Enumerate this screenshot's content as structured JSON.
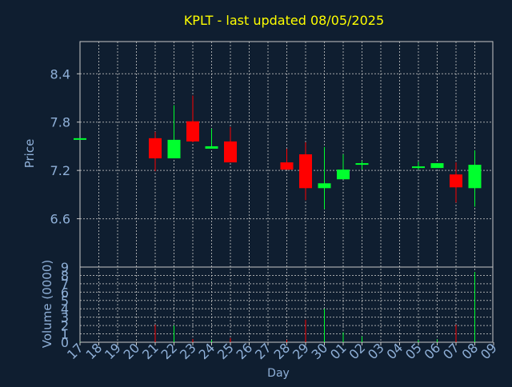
{
  "chart_data": {
    "type": "candlestick",
    "title": "KPLT - last updated 08/05/2025",
    "xlabel": "Day",
    "ylabel_price": "Price",
    "ylabel_volume": "Volume (0000)",
    "x_ticks": [
      "17",
      "18",
      "19",
      "20",
      "21",
      "22",
      "23",
      "24",
      "25",
      "26",
      "27",
      "28",
      "29",
      "30",
      "01",
      "02",
      "03",
      "04",
      "05",
      "06",
      "07",
      "08",
      "09"
    ],
    "price_ylim": [
      6.0,
      8.8
    ],
    "price_yticks": [
      "6.6",
      "7.2",
      "7.8",
      "8.4"
    ],
    "volume_ylim": [
      0,
      9
    ],
    "volume_yticks": [
      "0",
      "1",
      "2",
      "3",
      "4",
      "5",
      "6",
      "7",
      "8",
      "9"
    ],
    "grid": true,
    "candles": [
      {
        "day": "17",
        "open": 7.6,
        "high": 7.6,
        "low": 7.6,
        "close": 7.6,
        "volume": 0.05
      },
      {
        "day": "21",
        "open": 7.6,
        "high": 7.68,
        "low": 7.19,
        "close": 7.35,
        "volume": 2.1
      },
      {
        "day": "22",
        "open": 7.35,
        "high": 8.01,
        "low": 7.35,
        "close": 7.58,
        "volume": 2.0
      },
      {
        "day": "23",
        "open": 7.81,
        "high": 8.13,
        "low": 7.55,
        "close": 7.56,
        "volume": 0.4
      },
      {
        "day": "24",
        "open": 7.47,
        "high": 7.72,
        "low": 7.47,
        "close": 7.5,
        "volume": 0.25
      },
      {
        "day": "25",
        "open": 7.56,
        "high": 7.74,
        "low": 7.3,
        "close": 7.3,
        "volume": 0.5
      },
      {
        "day": "28",
        "open": 7.3,
        "high": 7.47,
        "low": 7.21,
        "close": 7.21,
        "volume": 0.3
      },
      {
        "day": "29",
        "open": 7.4,
        "high": 7.55,
        "low": 6.83,
        "close": 6.98,
        "volume": 2.7
      },
      {
        "day": "30",
        "open": 6.98,
        "high": 7.49,
        "low": 6.72,
        "close": 7.04,
        "volume": 4.0
      },
      {
        "day": "01",
        "open": 7.09,
        "high": 7.4,
        "low": 7.09,
        "close": 7.21,
        "volume": 1.2
      },
      {
        "day": "02",
        "open": 7.28,
        "high": 7.32,
        "low": 7.21,
        "close": 7.29,
        "volume": 0.7
      },
      {
        "day": "05",
        "open": 7.24,
        "high": 7.31,
        "low": 7.21,
        "close": 7.25,
        "volume": 0.25
      },
      {
        "day": "06",
        "open": 7.23,
        "high": 7.29,
        "low": 7.23,
        "close": 7.29,
        "volume": 0.35
      },
      {
        "day": "07",
        "open": 7.15,
        "high": 7.3,
        "low": 6.8,
        "close": 6.99,
        "volume": 2.1
      },
      {
        "day": "08",
        "open": 6.98,
        "high": 7.45,
        "low": 6.75,
        "close": 7.27,
        "volume": 8.4
      }
    ],
    "colors": {
      "background": "#0f1e30",
      "up": "#00ff2e",
      "down": "#ff0000",
      "title": "#ffff00",
      "axis_text": "#8fb0d8",
      "frame": "#c8c8c8",
      "grid": "#c8c8c8"
    }
  }
}
